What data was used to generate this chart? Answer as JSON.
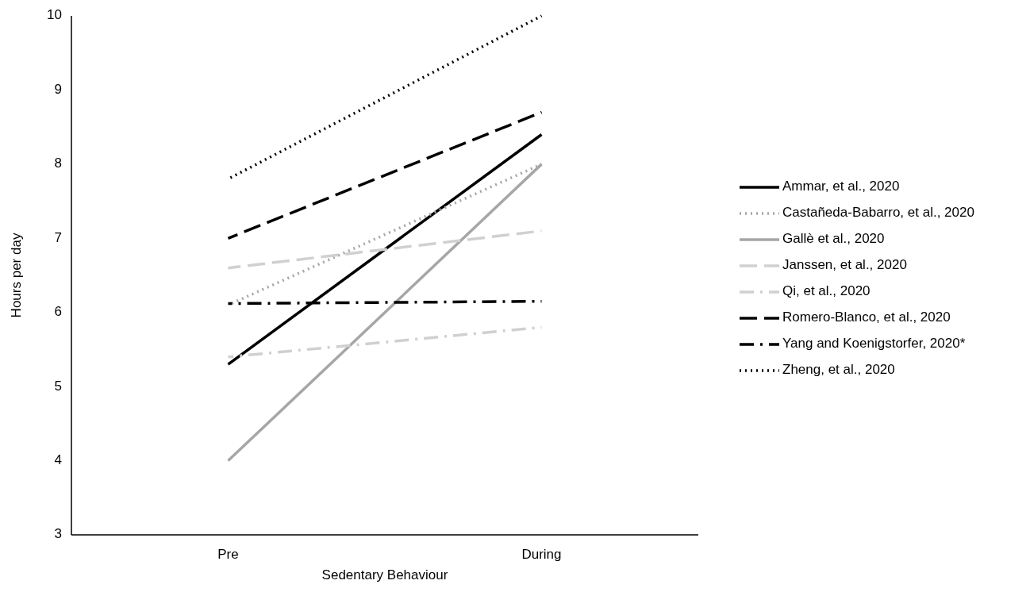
{
  "chart_data": {
    "type": "line",
    "xlabel": "Sedentary Behaviour",
    "ylabel": "Hours per day",
    "categories": [
      "Pre",
      "During"
    ],
    "ylim": [
      3,
      10
    ],
    "yticks": [
      3,
      4,
      5,
      6,
      7,
      8,
      9,
      10
    ],
    "grid": false,
    "legend": "right",
    "marker": "none",
    "series": [
      {
        "name": "Ammar, et al., 2020",
        "color": "#000000",
        "line_style": "solid",
        "values": [
          5.3,
          8.4
        ]
      },
      {
        "name": "Castañeda-Babarro, et al., 2020",
        "color": "#a6a6a6",
        "line_style": "dotted",
        "values": [
          6.1,
          8.0
        ]
      },
      {
        "name": "Gallè et al., 2020",
        "color": "#a6a6a6",
        "line_style": "solid",
        "values": [
          4.0,
          8.0
        ]
      },
      {
        "name": "Janssen, et al., 2020",
        "color": "#d0d0d0",
        "line_style": "dashed",
        "values": [
          6.6,
          7.1
        ]
      },
      {
        "name": "Qi, et al., 2020",
        "color": "#d0d0d0",
        "line_style": "dashdot",
        "values": [
          5.4,
          5.8
        ]
      },
      {
        "name": "Romero-Blanco, et al., 2020",
        "color": "#000000",
        "line_style": "dashed",
        "values": [
          7.0,
          8.7
        ]
      },
      {
        "name": "Yang and Koenigstorfer, 2020*",
        "color": "#000000",
        "line_style": "dashdot",
        "values": [
          6.12,
          6.15
        ]
      },
      {
        "name": "Zheng, et al., 2020",
        "color": "#000000",
        "line_style": "dotted",
        "values": [
          7.8,
          10.0
        ]
      }
    ]
  }
}
